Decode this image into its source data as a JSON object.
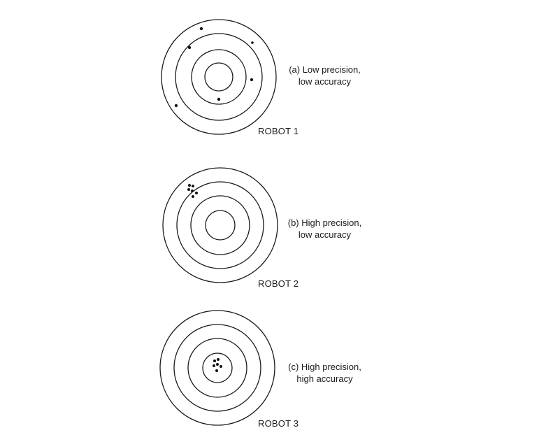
{
  "panels": [
    {
      "caption_line1": "(a) Low precision,",
      "caption_line2": "low accuracy",
      "robot_label": "ROBOT 1"
    },
    {
      "caption_line1": "(b) High precision,",
      "caption_line2": "low accuracy",
      "robot_label": "ROBOT 2"
    },
    {
      "caption_line1": "(c) High precision,",
      "caption_line2": "high accuracy",
      "robot_label": "ROBOT 3"
    }
  ]
}
